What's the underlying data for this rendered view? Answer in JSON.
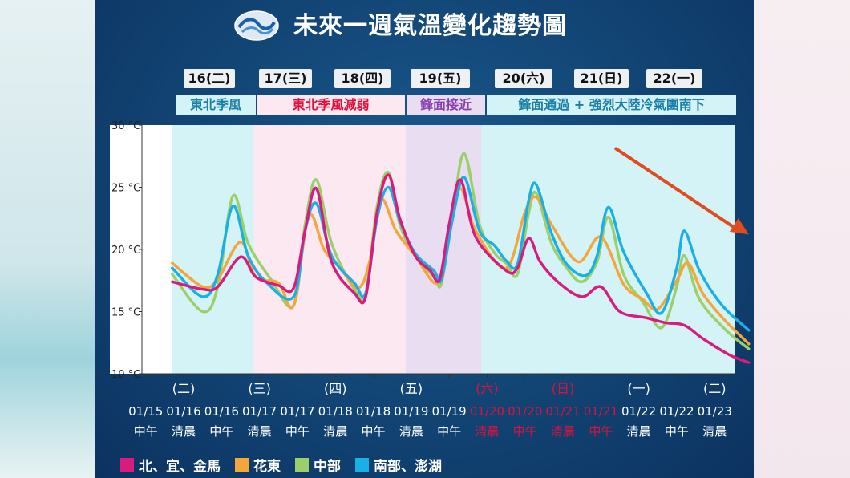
{
  "title": "未來一週氣溫變化趨勢圖",
  "days": [
    {
      "label": "16(二)"
    },
    {
      "label": "17(三)"
    },
    {
      "label": "18(四)"
    },
    {
      "label": "19(五)"
    },
    {
      "label": "20(六)"
    },
    {
      "label": "21(日)"
    },
    {
      "label": "22(一)"
    }
  ],
  "weather": [
    {
      "label": "東北季風",
      "color": "#1b7fa8",
      "bg": "#d4f3f6"
    },
    {
      "label": "東北季風減弱",
      "color": "#e0103c",
      "bg": "#fbe8f0"
    },
    {
      "label": "鋒面接近",
      "color": "#8a3fb0",
      "bg": "#e8ddf1"
    },
    {
      "label": "鋒面通過 + 強烈大陸冷氣團南下",
      "color": "#1b7fa8",
      "bg": "#d4f3f6"
    }
  ],
  "legend": [
    {
      "label": "北、宜、金馬",
      "color": "#d81b7d"
    },
    {
      "label": "花東",
      "color": "#f4a63a"
    },
    {
      "label": "中部",
      "color": "#9ccf6a"
    },
    {
      "label": "南部、澎湖",
      "color": "#18b0e6"
    }
  ],
  "chart_data": {
    "type": "line",
    "y_ticks": [
      "10 °C",
      "15 °C",
      "20 °C",
      "25 °C",
      "30 °C"
    ],
    "ylim": [
      10,
      30
    ],
    "x_ticks": [
      {
        "top": "",
        "date": "01/15",
        "time": "中午",
        "red": false
      },
      {
        "top": "(二)",
        "date": "01/16",
        "time": "清晨",
        "red": false
      },
      {
        "top": "",
        "date": "01/16",
        "time": "中午",
        "red": false
      },
      {
        "top": "(三)",
        "date": "01/17",
        "time": "清晨",
        "red": false
      },
      {
        "top": "",
        "date": "01/17",
        "time": "中午",
        "red": false
      },
      {
        "top": "(四)",
        "date": "01/18",
        "time": "清晨",
        "red": false
      },
      {
        "top": "",
        "date": "01/18",
        "time": "中午",
        "red": false
      },
      {
        "top": "(五)",
        "date": "01/19",
        "time": "清晨",
        "red": false
      },
      {
        "top": "",
        "date": "01/19",
        "time": "中午",
        "red": false
      },
      {
        "top": "(六)",
        "date": "01/20",
        "time": "清晨",
        "red": true
      },
      {
        "top": "",
        "date": "01/20",
        "time": "中午",
        "red": true
      },
      {
        "top": "(日)",
        "date": "01/21",
        "time": "清晨",
        "red": true
      },
      {
        "top": "",
        "date": "01/21",
        "time": "中午",
        "red": true
      },
      {
        "top": "(一)",
        "date": "01/22",
        "time": "清晨",
        "red": false
      },
      {
        "top": "",
        "date": "01/22",
        "time": "中午",
        "red": false
      },
      {
        "top": "(二)",
        "date": "01/23",
        "time": "清晨",
        "red": false
      }
    ],
    "series": [
      {
        "name": "北、宜、金馬",
        "color": "#d81b7d",
        "points": [
          [
            0.8,
            17.4
          ],
          [
            1.6,
            16.8
          ],
          [
            2.0,
            17.0
          ],
          [
            2.6,
            19.4
          ],
          [
            3.0,
            17.8
          ],
          [
            3.6,
            17.1
          ],
          [
            4.0,
            16.9
          ],
          [
            4.3,
            21.5
          ],
          [
            4.6,
            24.9
          ],
          [
            5.0,
            19.0
          ],
          [
            5.6,
            16.5
          ],
          [
            5.9,
            16.2
          ],
          [
            6.2,
            23.0
          ],
          [
            6.5,
            26.0
          ],
          [
            6.8,
            22.5
          ],
          [
            7.2,
            19.5
          ],
          [
            7.6,
            18.3
          ],
          [
            7.85,
            17.6
          ],
          [
            8.1,
            22.0
          ],
          [
            8.4,
            25.6
          ],
          [
            8.8,
            21.0
          ],
          [
            9.6,
            18.3
          ],
          [
            9.9,
            18.5
          ],
          [
            10.2,
            20.9
          ],
          [
            10.5,
            19.0
          ],
          [
            11.0,
            17.3
          ],
          [
            11.6,
            16.2
          ],
          [
            12.1,
            17.0
          ],
          [
            12.6,
            15.0
          ],
          [
            13.3,
            14.5
          ],
          [
            13.8,
            14.1
          ],
          [
            14.3,
            13.9
          ],
          [
            14.8,
            12.8
          ],
          [
            15.5,
            11.5
          ],
          [
            16.0,
            10.9
          ]
        ]
      },
      {
        "name": "花東",
        "color": "#f4a63a",
        "points": [
          [
            0.8,
            18.9
          ],
          [
            1.6,
            17.0
          ],
          [
            2.0,
            17.6
          ],
          [
            2.6,
            20.6
          ],
          [
            3.0,
            17.8
          ],
          [
            3.6,
            17.3
          ],
          [
            4.0,
            15.5
          ],
          [
            4.4,
            22.7
          ],
          [
            4.8,
            20.0
          ],
          [
            5.2,
            18.6
          ],
          [
            5.7,
            16.9
          ],
          [
            6.0,
            19.0
          ],
          [
            6.3,
            24.0
          ],
          [
            6.7,
            21.5
          ],
          [
            7.2,
            19.5
          ],
          [
            7.8,
            17.3
          ],
          [
            8.1,
            21.5
          ],
          [
            8.4,
            24.9
          ],
          [
            8.8,
            21.5
          ],
          [
            9.6,
            18.5
          ],
          [
            10.1,
            23.0
          ],
          [
            10.4,
            24.2
          ],
          [
            10.8,
            22.0
          ],
          [
            11.5,
            19.0
          ],
          [
            12.1,
            21.0
          ],
          [
            12.7,
            17.2
          ],
          [
            13.2,
            16.0
          ],
          [
            13.6,
            15.2
          ],
          [
            14.1,
            17.5
          ],
          [
            14.4,
            18.9
          ],
          [
            14.8,
            16.4
          ],
          [
            15.4,
            14.2
          ],
          [
            16.0,
            12.4
          ]
        ]
      },
      {
        "name": "中部",
        "color": "#9ccf6a",
        "points": [
          [
            0.8,
            18.0
          ],
          [
            1.6,
            15.0
          ],
          [
            2.0,
            17.0
          ],
          [
            2.4,
            24.3
          ],
          [
            2.8,
            20.5
          ],
          [
            3.4,
            17.6
          ],
          [
            4.0,
            15.5
          ],
          [
            4.3,
            22.0
          ],
          [
            4.6,
            25.6
          ],
          [
            5.0,
            20.5
          ],
          [
            5.6,
            16.8
          ],
          [
            5.9,
            16.5
          ],
          [
            6.2,
            23.5
          ],
          [
            6.5,
            26.2
          ],
          [
            6.8,
            22.0
          ],
          [
            7.2,
            19.5
          ],
          [
            7.7,
            17.8
          ],
          [
            7.9,
            17.3
          ],
          [
            8.2,
            23.0
          ],
          [
            8.5,
            27.7
          ],
          [
            8.9,
            22.0
          ],
          [
            9.3,
            19.7
          ],
          [
            9.6,
            18.9
          ],
          [
            9.9,
            18.0
          ],
          [
            10.2,
            23.0
          ],
          [
            10.4,
            24.5
          ],
          [
            10.8,
            20.5
          ],
          [
            11.2,
            18.5
          ],
          [
            11.6,
            17.4
          ],
          [
            12.0,
            19.0
          ],
          [
            12.3,
            22.6
          ],
          [
            12.7,
            18.0
          ],
          [
            13.2,
            15.8
          ],
          [
            13.7,
            13.7
          ],
          [
            14.1,
            17.0
          ],
          [
            14.3,
            19.5
          ],
          [
            14.7,
            16.0
          ],
          [
            15.4,
            13.5
          ],
          [
            16.0,
            12.0
          ]
        ]
      },
      {
        "name": "南部、澎湖",
        "color": "#18b0e6",
        "points": [
          [
            0.8,
            18.5
          ],
          [
            1.6,
            16.2
          ],
          [
            2.0,
            18.0
          ],
          [
            2.4,
            23.5
          ],
          [
            2.8,
            19.5
          ],
          [
            3.3,
            17.3
          ],
          [
            4.0,
            16.2
          ],
          [
            4.3,
            21.5
          ],
          [
            4.6,
            23.7
          ],
          [
            5.0,
            19.5
          ],
          [
            5.6,
            17.3
          ],
          [
            5.9,
            16.5
          ],
          [
            6.2,
            22.5
          ],
          [
            6.5,
            25.0
          ],
          [
            6.8,
            22.3
          ],
          [
            7.2,
            19.7
          ],
          [
            7.7,
            18.3
          ],
          [
            7.9,
            17.6
          ],
          [
            8.2,
            22.6
          ],
          [
            8.5,
            25.8
          ],
          [
            8.9,
            21.5
          ],
          [
            9.3,
            20.3
          ],
          [
            9.6,
            19.1
          ],
          [
            9.9,
            18.8
          ],
          [
            10.2,
            24.0
          ],
          [
            10.4,
            25.2
          ],
          [
            10.8,
            21.3
          ],
          [
            11.2,
            18.8
          ],
          [
            11.7,
            17.9
          ],
          [
            12.0,
            19.5
          ],
          [
            12.3,
            23.4
          ],
          [
            12.7,
            19.8
          ],
          [
            13.3,
            16.5
          ],
          [
            13.7,
            14.9
          ],
          [
            14.1,
            18.5
          ],
          [
            14.3,
            21.5
          ],
          [
            14.7,
            18.3
          ],
          [
            15.3,
            15.5
          ],
          [
            16.0,
            13.5
          ]
        ]
      }
    ],
    "background_bands": [
      {
        "from": 0.8,
        "to": 2.95,
        "color": "#d4f3f6"
      },
      {
        "from": 2.95,
        "to": 6.95,
        "color": "#fbe8f0"
      },
      {
        "from": 6.95,
        "to": 8.95,
        "color": "#e8ddf1"
      },
      {
        "from": 8.95,
        "to": 16.3,
        "color": "#d4f3f6"
      }
    ],
    "trend_arrow": {
      "from": [
        12.5,
        28.1
      ],
      "to": [
        16.0,
        21.2
      ],
      "color": "#e24a1f"
    }
  }
}
